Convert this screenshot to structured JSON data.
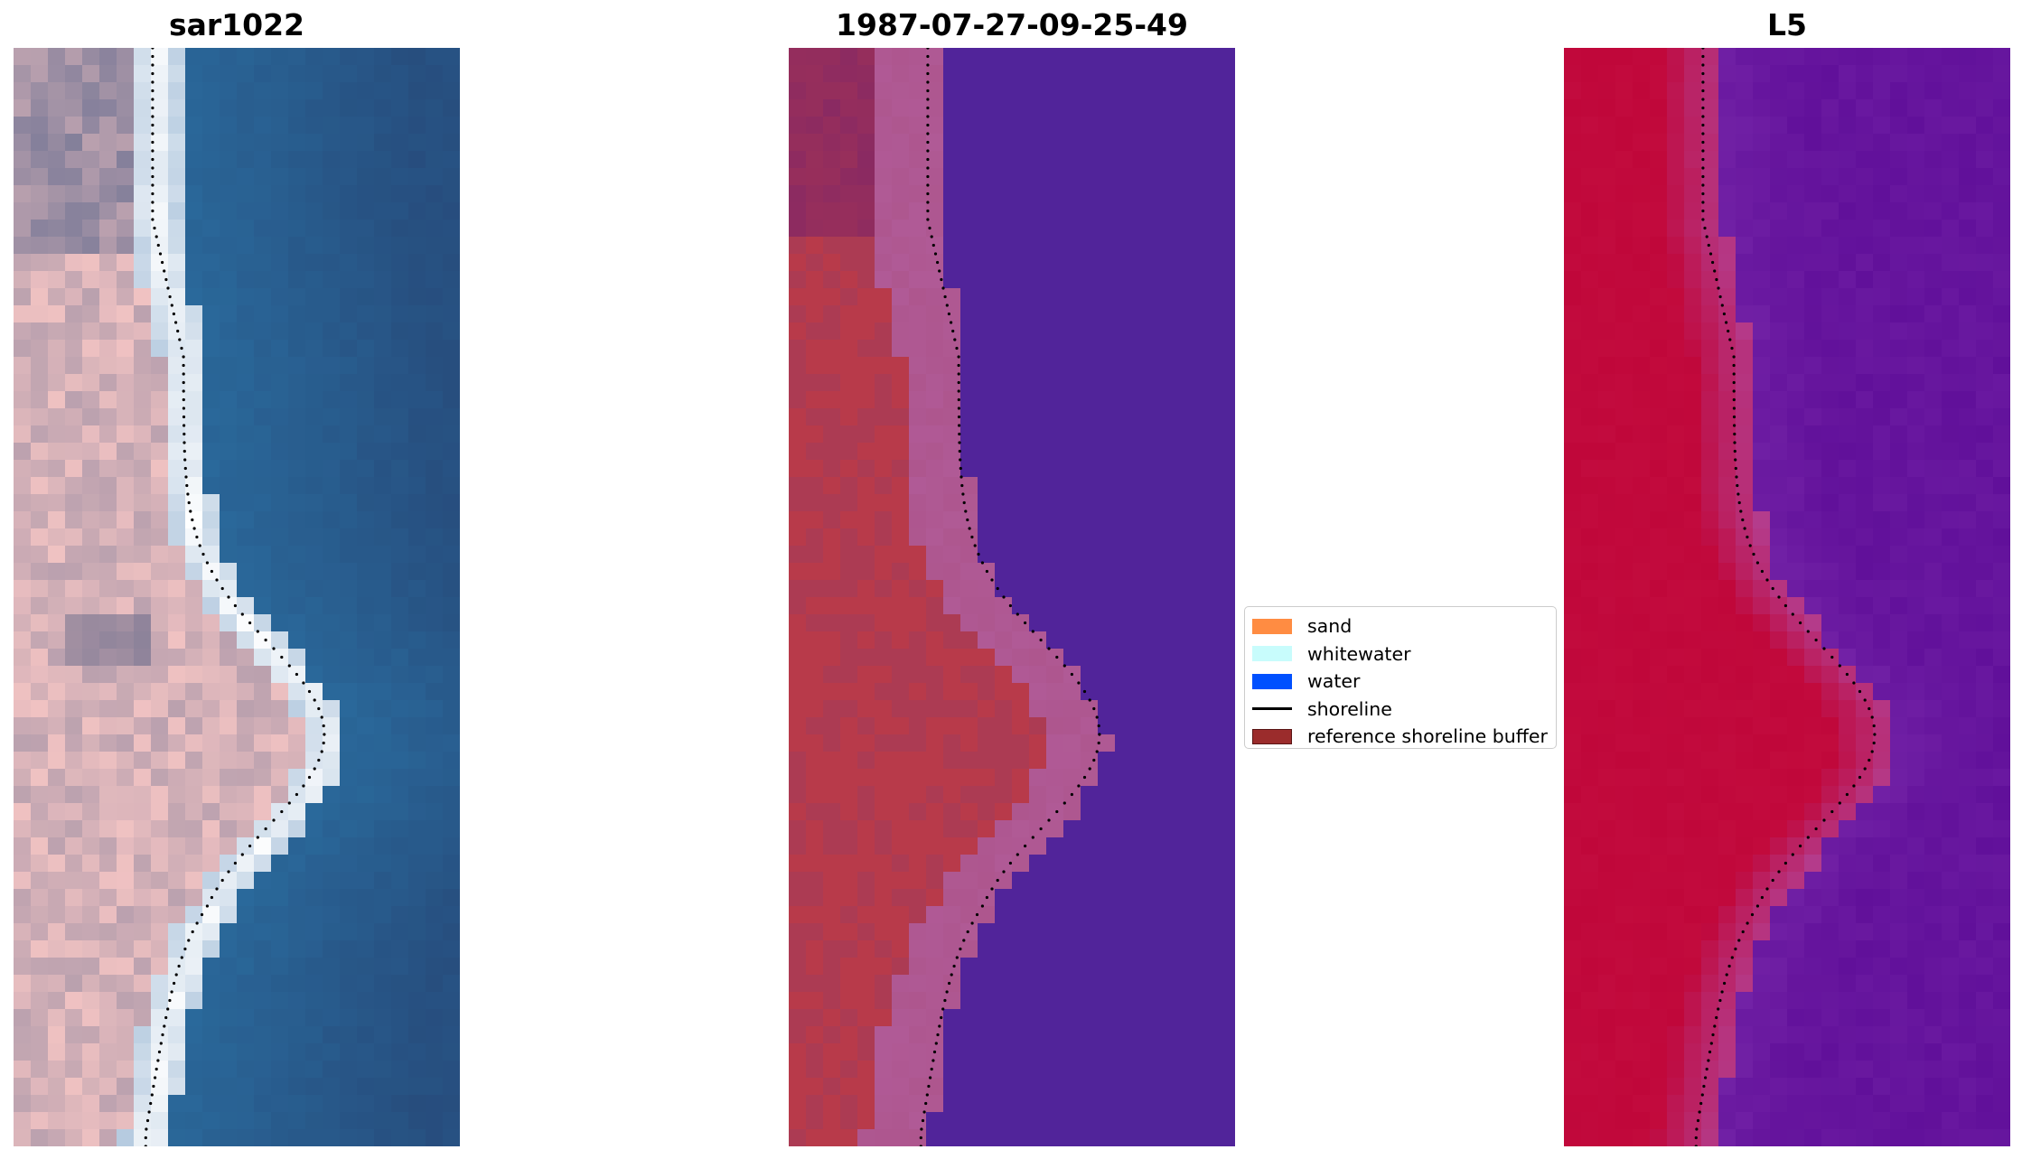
{
  "panels": [
    {
      "title": "sar1022",
      "kind": "rgb"
    },
    {
      "title": "1987-07-27-09-25-49",
      "kind": "classified"
    },
    {
      "title": "L5",
      "kind": "index"
    }
  ],
  "legend": {
    "items": [
      {
        "label": "sand",
        "type": "patch",
        "color": "#ff8c42"
      },
      {
        "label": "whitewater",
        "type": "patch",
        "color": "#c8fcfc"
      },
      {
        "label": "water",
        "type": "patch",
        "color": "#0050ff"
      },
      {
        "label": "shoreline",
        "type": "line",
        "color": "#000000"
      },
      {
        "label": "reference shoreline buffer",
        "type": "patch",
        "color": "#9b2c2c"
      }
    ]
  },
  "colors": {
    "water_rgb": "#2a6a9c",
    "land_rgb": "#f0c2c2",
    "surf_rgb": "#ffffff",
    "water_class": "#51249a",
    "land_class": "#b83a4a",
    "buffer_class": "#b05a96",
    "index_land": "#c0073a",
    "index_water": "#61109a",
    "shoreline_dots": "#000000"
  }
}
